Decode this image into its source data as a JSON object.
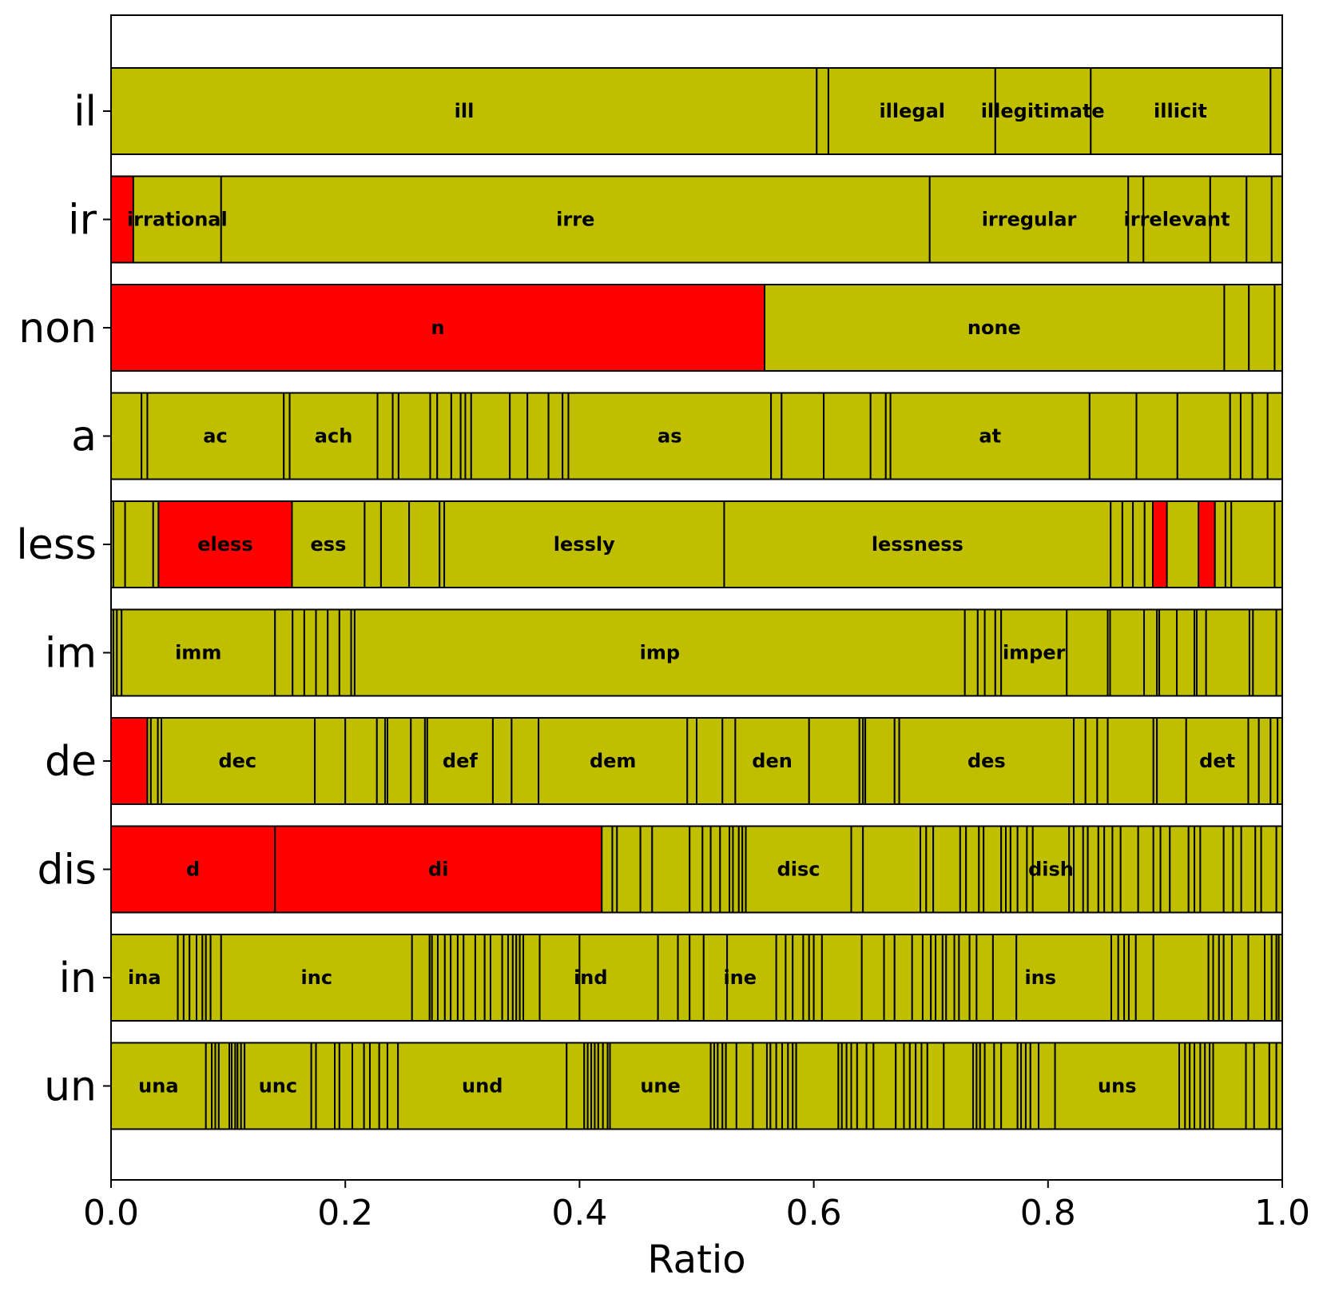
{
  "chart_data": {
    "type": "bar",
    "orientation": "horizontal-stacked",
    "xlabel": "Ratio",
    "ylabel": "",
    "xlim": [
      0,
      1
    ],
    "xticks": [
      "0.0",
      "0.2",
      "0.4",
      "0.6",
      "0.8",
      "1.0"
    ],
    "colors": {
      "default": "#bfbf00",
      "highlight": "#ff0000",
      "edge": "#000000"
    },
    "categories": [
      "il",
      "ir",
      "non",
      "a",
      "less",
      "im",
      "de",
      "dis",
      "in",
      "un"
    ],
    "rows": [
      {
        "name": "il",
        "boundaries": [
          0.6025,
          0.6125,
          0.755,
          0.8365,
          0.99
        ],
        "red": [],
        "labels": [
          {
            "text": "ill",
            "at": 0.3015
          },
          {
            "text": "illegal",
            "at": 0.684
          },
          {
            "text": "illegitimate",
            "at": 0.7955
          },
          {
            "text": "illicit",
            "at": 0.913
          }
        ]
      },
      {
        "name": "ir",
        "boundaries": [
          0.019,
          0.094,
          0.699,
          0.8685,
          0.8815,
          0.9385,
          0.9695,
          0.991
        ],
        "red": [
          0
        ],
        "labels": [
          {
            "text": "irrational",
            "at": 0.0565
          },
          {
            "text": "irre",
            "at": 0.3965
          },
          {
            "text": "irregular",
            "at": 0.7838
          },
          {
            "text": "irrelevant",
            "at": 0.91
          }
        ]
      },
      {
        "name": "non",
        "boundaries": [
          0.558,
          0.9505,
          0.9715,
          0.9935
        ],
        "red": [
          0
        ],
        "labels": [
          {
            "text": "n",
            "at": 0.279
          },
          {
            "text": "none",
            "at": 0.754
          }
        ]
      },
      {
        "name": "a",
        "boundaries": [
          0.026,
          0.031,
          0.1475,
          0.1525,
          0.2275,
          0.2405,
          0.2455,
          0.2725,
          0.2785,
          0.2905,
          0.2985,
          0.3025,
          0.3075,
          0.3405,
          0.3555,
          0.3735,
          0.3855,
          0.3905,
          0.5635,
          0.5725,
          0.6085,
          0.6485,
          0.6615,
          0.6655,
          0.8355,
          0.8755,
          0.9105,
          0.9555,
          0.9645,
          0.9745,
          0.9875
        ],
        "red": [],
        "labels": [
          {
            "text": "ac",
            "at": 0.089
          },
          {
            "text": "ach",
            "at": 0.19
          },
          {
            "text": "as",
            "at": 0.477
          },
          {
            "text": "at",
            "at": 0.7505
          }
        ]
      },
      {
        "name": "less",
        "boundaries": [
          0.002,
          0.012,
          0.036,
          0.0405,
          0.1545,
          0.2165,
          0.2305,
          0.2545,
          0.2805,
          0.2845,
          0.5235,
          0.8535,
          0.8635,
          0.8725,
          0.8825,
          0.8895,
          0.9015,
          0.9285,
          0.9425,
          0.9515,
          0.9565,
          0.9935
        ],
        "red": [
          4,
          16,
          18
        ],
        "labels": [
          {
            "text": "eless",
            "at": 0.0975
          },
          {
            "text": "ess",
            "at": 0.1855
          },
          {
            "text": "lessly",
            "at": 0.404
          },
          {
            "text": "lessness",
            "at": 0.6885
          }
        ]
      },
      {
        "name": "im",
        "boundaries": [
          0.002,
          0.005,
          0.009,
          0.14,
          0.155,
          0.165,
          0.175,
          0.185,
          0.195,
          0.205,
          0.208,
          0.729,
          0.74,
          0.746,
          0.755,
          0.76,
          0.816,
          0.851,
          0.853,
          0.882,
          0.893,
          0.895,
          0.91,
          0.925,
          0.927,
          0.935,
          0.972,
          0.975,
          0.995
        ],
        "red": [],
        "labels": [
          {
            "text": "imm",
            "at": 0.0745
          },
          {
            "text": "imp",
            "at": 0.4685
          },
          {
            "text": "imper",
            "at": 0.788
          }
        ]
      },
      {
        "name": "de",
        "boundaries": [
          0.031,
          0.034,
          0.04,
          0.043,
          0.174,
          0.2,
          0.227,
          0.234,
          0.236,
          0.256,
          0.268,
          0.27,
          0.326,
          0.342,
          0.365,
          0.492,
          0.5,
          0.522,
          0.533,
          0.596,
          0.639,
          0.642,
          0.644,
          0.669,
          0.673,
          0.822,
          0.832,
          0.842,
          0.851,
          0.89,
          0.893,
          0.918,
          0.971,
          0.98,
          0.99,
          0.996
        ],
        "red": [
          0
        ],
        "labels": [
          {
            "text": "dec",
            "at": 0.108
          },
          {
            "text": "def",
            "at": 0.298
          },
          {
            "text": "dem",
            "at": 0.4285
          },
          {
            "text": "den",
            "at": 0.5645
          },
          {
            "text": "des",
            "at": 0.7475
          },
          {
            "text": "det",
            "at": 0.9445
          }
        ]
      },
      {
        "name": "dis",
        "boundaries": [
          0.14,
          0.419,
          0.428,
          0.432,
          0.452,
          0.462,
          0.494,
          0.505,
          0.512,
          0.52,
          0.528,
          0.531,
          0.536,
          0.539,
          0.542,
          0.632,
          0.642,
          0.691,
          0.696,
          0.702,
          0.725,
          0.73,
          0.741,
          0.745,
          0.76,
          0.764,
          0.768,
          0.774,
          0.782,
          0.787,
          0.818,
          0.822,
          0.83,
          0.834,
          0.843,
          0.848,
          0.855,
          0.862,
          0.877,
          0.89,
          0.896,
          0.904,
          0.92,
          0.925,
          0.93,
          0.95,
          0.958,
          0.965,
          0.977,
          0.982,
          0.995
        ],
        "red": [
          0,
          1
        ],
        "labels": [
          {
            "text": "d",
            "at": 0.07
          },
          {
            "text": "di",
            "at": 0.2795
          },
          {
            "text": "disc",
            "at": 0.587
          },
          {
            "text": "dish",
            "at": 0.8025
          }
        ]
      },
      {
        "name": "in",
        "boundaries": [
          0.057,
          0.062,
          0.067,
          0.073,
          0.078,
          0.081,
          0.085,
          0.094,
          0.257,
          0.272,
          0.274,
          0.279,
          0.285,
          0.29,
          0.296,
          0.301,
          0.311,
          0.319,
          0.324,
          0.334,
          0.339,
          0.343,
          0.346,
          0.349,
          0.352,
          0.366,
          0.4,
          0.467,
          0.484,
          0.494,
          0.506,
          0.526,
          0.568,
          0.576,
          0.582,
          0.591,
          0.596,
          0.6,
          0.607,
          0.641,
          0.66,
          0.669,
          0.684,
          0.693,
          0.7,
          0.704,
          0.71,
          0.713,
          0.72,
          0.724,
          0.733,
          0.739,
          0.753,
          0.773,
          0.854,
          0.86,
          0.865,
          0.869,
          0.875,
          0.89,
          0.937,
          0.941,
          0.946,
          0.95,
          0.957,
          0.971,
          0.985,
          0.991,
          0.995,
          0.997
        ],
        "red": [],
        "labels": [
          {
            "text": "ina",
            "at": 0.0285
          },
          {
            "text": "inc",
            "at": 0.1755
          },
          {
            "text": "ind",
            "at": 0.4095
          },
          {
            "text": "ine",
            "at": 0.537
          },
          {
            "text": "ins",
            "at": 0.7935
          }
        ]
      },
      {
        "name": "un",
        "boundaries": [
          0.081,
          0.086,
          0.089,
          0.092,
          0.101,
          0.103,
          0.106,
          0.108,
          0.111,
          0.114,
          0.171,
          0.175,
          0.191,
          0.195,
          0.206,
          0.216,
          0.221,
          0.229,
          0.236,
          0.245,
          0.389,
          0.404,
          0.407,
          0.41,
          0.413,
          0.416,
          0.42,
          0.424,
          0.426,
          0.512,
          0.515,
          0.518,
          0.522,
          0.525,
          0.534,
          0.548,
          0.56,
          0.563,
          0.568,
          0.573,
          0.578,
          0.582,
          0.585,
          0.621,
          0.624,
          0.628,
          0.632,
          0.637,
          0.645,
          0.651,
          0.67,
          0.677,
          0.682,
          0.687,
          0.692,
          0.697,
          0.711,
          0.736,
          0.739,
          0.742,
          0.746,
          0.754,
          0.76,
          0.774,
          0.777,
          0.781,
          0.785,
          0.792,
          0.806,
          0.912,
          0.917,
          0.921,
          0.925,
          0.93,
          0.934,
          0.938,
          0.941,
          0.969,
          0.976,
          0.989,
          0.995
        ],
        "red": [],
        "labels": [
          {
            "text": "una",
            "at": 0.0405
          },
          {
            "text": "unc",
            "at": 0.1425
          },
          {
            "text": "und",
            "at": 0.317
          },
          {
            "text": "une",
            "at": 0.469
          },
          {
            "text": "uns",
            "at": 0.859
          }
        ]
      }
    ]
  }
}
